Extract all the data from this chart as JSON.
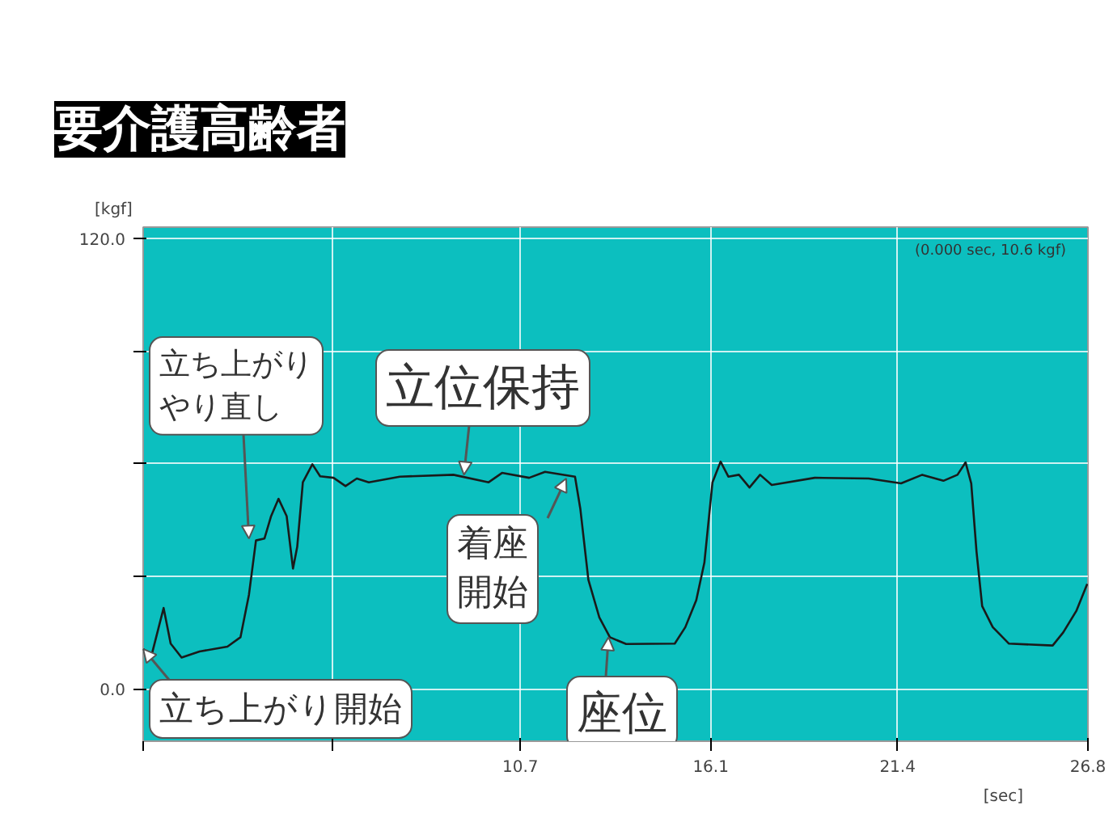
{
  "chart_data": {
    "type": "line",
    "title": "要介護高齢者",
    "xlabel": "[sec]",
    "ylabel": "[kgf]",
    "x": [
      0,
      0.23,
      0.58,
      0.78,
      1.09,
      1.6,
      2.39,
      2.76,
      3.0,
      3.2,
      3.44,
      3.63,
      3.84,
      4.07,
      4.25,
      4.37,
      4.53,
      4.8,
      5.02,
      5.4,
      5.74,
      6.06,
      6.4,
      7.28,
      8.8,
      9.8,
      10.18,
      10.95,
      11.4,
      12.25,
      12.4,
      12.63,
      12.94,
      13.24,
      13.7,
      15.08,
      15.38,
      15.69,
      15.92,
      16.15,
      16.38,
      16.6,
      16.9,
      17.2,
      17.5,
      17.83,
      19.05,
      20.58,
      21.5,
      22.1,
      22.7,
      23.1,
      23.33,
      23.49,
      23.64,
      23.8,
      24.1,
      24.56,
      25.8,
      26.1,
      26.47,
      26.78
    ],
    "series": [
      {
        "color": "#1a1a1a",
        "values": [
          10.6,
          8.6,
          21.5,
          12,
          8.3,
          9.9,
          11.2,
          13.7,
          25,
          39.5,
          40,
          46,
          50.6,
          46,
          32,
          37.8,
          55,
          59.8,
          56.6,
          56.2,
          54,
          56,
          55,
          56.5,
          57,
          55,
          57.5,
          56.2,
          57.8,
          56.5,
          48,
          29,
          19,
          13.7,
          11.9,
          12,
          16.4,
          23.6,
          33.6,
          55,
          60.5,
          56.5,
          57,
          53.6,
          57,
          54.3,
          56.2,
          56,
          54.7,
          57,
          55.4,
          57,
          60.3,
          54.7,
          36.5,
          22,
          16.4,
          12,
          11.5,
          15,
          20.7,
          27.9
        ]
      }
    ],
    "xlim": [
      0,
      26.8
    ],
    "ylim": [
      -14,
      123
    ],
    "xticks": [
      {
        "value": 0,
        "label": null
      },
      {
        "value": 5.35,
        "label": null
      },
      10.7,
      16.1,
      21.4,
      26.8
    ],
    "yticks": [
      {
        "value": 0,
        "label": "0.0"
      },
      {
        "value": 30,
        "label": null
      },
      {
        "value": 60,
        "label": null
      },
      {
        "value": 90,
        "label": null
      },
      {
        "value": 120,
        "label": "120.0"
      }
    ],
    "grid": true,
    "marker": "none",
    "line_style": "solid",
    "annotations": [
      "(0.000 sec, 10.6 kgf)",
      {
        "text": "立ち上がり開始",
        "x": 0,
        "y": 10.6
      },
      {
        "text": "立ち上がりやり直し",
        "x": 3.0,
        "y": 40
      },
      {
        "text": "立位保持",
        "x": 9.1,
        "y": 57
      },
      {
        "text": "着座開始",
        "x": 12.0,
        "y": 56
      },
      {
        "text": "座位",
        "x": 13.2,
        "y": 13.7
      }
    ]
  }
}
